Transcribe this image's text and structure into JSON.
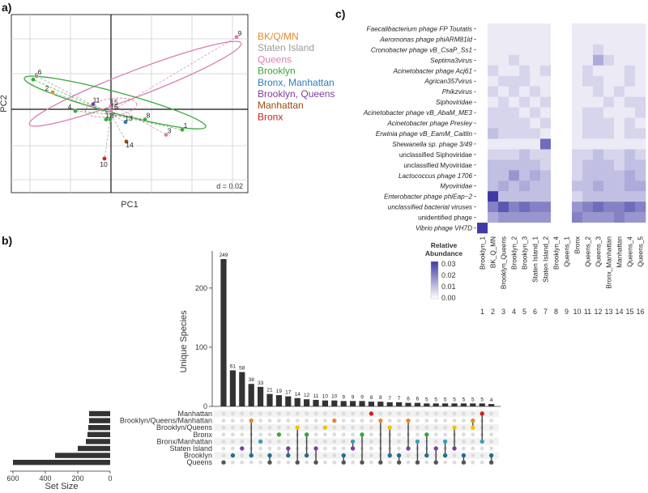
{
  "panels": {
    "a": "a)",
    "b": "b)",
    "c": "c)"
  },
  "colors": {
    "bk_q_mn": "#e8882a",
    "staten_island": "#9c9c9c",
    "queens": "#d77fb3",
    "brooklyn": "#3aa83a",
    "bronx_manhattan": "#2b7fba",
    "brooklyn_queens": "#7b3f9e",
    "manhattan": "#9a4a10",
    "bronx": "#d21f1f",
    "heat_high": "#3f3aa5",
    "bar": "#333333",
    "matrix_dot_off": "#dcdcdc"
  },
  "chart_data": [
    {
      "type": "scatter",
      "xlabel": "PC1",
      "ylabel": "PC2",
      "annotation": "d = 0.02",
      "grid": true,
      "legend_position": "right",
      "legend": [
        {
          "label": "BK/Q/MN",
          "color": "#e8882a"
        },
        {
          "label": "Staten Island",
          "color": "#9c9c9c"
        },
        {
          "label": "Queens",
          "color": "#d77fb3"
        },
        {
          "label": "Brooklyn",
          "color": "#3aa83a"
        },
        {
          "label": "Bronx, Manhattan",
          "color": "#2b7fba"
        },
        {
          "label": "Brooklyn, Queens",
          "color": "#7b3f9e"
        },
        {
          "label": "Manhattan",
          "color": "#9a4a10"
        },
        {
          "label": "Bronx",
          "color": "#d21f1f"
        }
      ],
      "points": [
        {
          "label": "1",
          "group": "Brooklyn",
          "x": 0.088,
          "y": -0.024
        },
        {
          "label": "2",
          "group": "BK/Q/MN",
          "x": -0.072,
          "y": 0.02
        },
        {
          "label": "3",
          "group": "Queens",
          "x": 0.068,
          "y": -0.03
        },
        {
          "label": "4",
          "group": "Brooklyn",
          "x": -0.044,
          "y": -0.002
        },
        {
          "label": "5",
          "group": "Brooklyn",
          "x": -0.096,
          "y": 0.035
        },
        {
          "label": "6",
          "group": "Staten Island",
          "x": -0.092,
          "y": 0.039
        },
        {
          "label": "7",
          "group": "Brooklyn",
          "x": -0.001,
          "y": -0.012
        },
        {
          "label": "8",
          "group": "Brooklyn",
          "x": 0.042,
          "y": -0.012
        },
        {
          "label": "9",
          "group": "Queens",
          "x": 0.155,
          "y": 0.085
        },
        {
          "label": "10",
          "group": "Bronx",
          "x": -0.008,
          "y": -0.058
        },
        {
          "label": "11",
          "group": "Brooklyn, Queens",
          "x": -0.022,
          "y": 0.006
        },
        {
          "label": "12",
          "group": "Brooklyn",
          "x": -0.006,
          "y": -0.012
        },
        {
          "label": "13",
          "group": "Bronx, Manhattan",
          "x": 0.018,
          "y": -0.015
        },
        {
          "label": "14",
          "group": "Manhattan",
          "x": 0.019,
          "y": -0.038
        },
        {
          "label": "15",
          "group": "Queens",
          "x": 0.0,
          "y": 0.004
        },
        {
          "label": "16",
          "group": "Queens",
          "x": 0.0,
          "y": -0.002
        }
      ]
    },
    {
      "type": "bar",
      "title": "",
      "ylabel": "Unique Species",
      "yticks": [
        0,
        100,
        200
      ],
      "ylim": [
        0,
        260
      ],
      "values": [
        249,
        61,
        58,
        38,
        33,
        21,
        19,
        17,
        14,
        12,
        11,
        10,
        10,
        9,
        9,
        9,
        8,
        8,
        7,
        7,
        6,
        6,
        5,
        5,
        5,
        5,
        5,
        5,
        5,
        4
      ],
      "sets": [
        "Manhattan",
        "Brooklyn/Queens/Manhattan",
        "Brooklyn/Queens",
        "Bronx",
        "Bronx/Manhattan",
        "Staten Island",
        "Brooklyn",
        "Queens"
      ],
      "set_size": {
        "xlabel": "Set Size",
        "xticks": [
          600,
          400,
          200,
          0
        ],
        "values": [
          130,
          130,
          135,
          140,
          150,
          200,
          340,
          600
        ]
      }
    },
    {
      "type": "heatmap",
      "legend_title": "Relative Abundance",
      "legend_ticks": [
        "0.03",
        "0.02",
        "0.01",
        "0.00"
      ],
      "rows": [
        "Faecalibacterium phage FP Toutatis",
        "Aeromonas phage phiARM81ld",
        "Cronobacter phage vB_CsaP_Ss1",
        "Septima3virus",
        "Acinetobacter phage Acj61",
        "Agrican357virus",
        "Phikzvirus",
        "Siphoviridae",
        "Acinetobacter phage vB_AbaM_ME3",
        "Acinetobacter phage Presley",
        "Erwinia phage vB_EamM_Caitlin",
        "Shewanella sp. phage 3/49",
        "unclassified Siphoviridae",
        "unclassified Myoviridae",
        "Lactococcus phage 1706",
        "Myoviridae",
        "Enterobacter phage phiEap−2",
        "unclassified bacterial viruses",
        "unidentified phage",
        "Vibrio phage VH7D"
      ],
      "row_italic": [
        true,
        true,
        true,
        true,
        true,
        true,
        true,
        true,
        true,
        true,
        true,
        true,
        false,
        false,
        true,
        true,
        true,
        true,
        false,
        true
      ],
      "columns": [
        "Brooklyn_1",
        "BK_Q_MN",
        "Brooklyn_Queens",
        "Brooklyn_2",
        "Brooklyn_3",
        "Staten Island_1",
        "Staten Island_2",
        "Brooklyn_4",
        "Queens_1",
        "Bronx",
        "Queens_2",
        "Queens_3",
        "Bronx_Manhattan",
        "Manhattan",
        "Queens_4",
        "Queens_5"
      ],
      "column_numbers": [
        "1",
        "2",
        "3",
        "4",
        "5",
        "6",
        "7",
        "8",
        "9",
        "10",
        "11",
        "12",
        "13",
        "14",
        "15",
        "16"
      ],
      "values": [
        [
          0.0,
          0.001,
          0.001,
          0.001,
          0.001,
          0.001,
          0.001,
          0.0,
          0.0,
          0.001,
          0.001,
          0.001,
          0.001,
          0.001,
          0.001,
          0.001
        ],
        [
          0.0,
          0.001,
          0.001,
          0.001,
          0.001,
          0.001,
          0.001,
          0.0,
          0.0,
          0.001,
          0.001,
          0.001,
          0.001,
          0.001,
          0.001,
          0.001
        ],
        [
          0.0,
          0.001,
          0.001,
          0.001,
          0.001,
          0.001,
          0.001,
          0.0,
          0.0,
          0.001,
          0.001,
          0.002,
          0.001,
          0.001,
          0.001,
          0.001
        ],
        [
          0.0,
          0.001,
          0.001,
          0.002,
          0.001,
          0.001,
          0.001,
          0.0,
          0.0,
          0.001,
          0.001,
          0.004,
          0.002,
          0.001,
          0.001,
          0.001
        ],
        [
          0.0,
          0.002,
          0.001,
          0.001,
          0.002,
          0.001,
          0.002,
          0.0,
          0.0,
          0.001,
          0.002,
          0.001,
          0.001,
          0.001,
          0.002,
          0.001
        ],
        [
          0.0,
          0.001,
          0.002,
          0.002,
          0.002,
          0.001,
          0.001,
          0.0,
          0.0,
          0.001,
          0.002,
          0.002,
          0.001,
          0.001,
          0.002,
          0.001
        ],
        [
          0.0,
          0.002,
          0.001,
          0.002,
          0.001,
          0.002,
          0.001,
          0.0,
          0.0,
          0.001,
          0.001,
          0.002,
          0.001,
          0.002,
          0.001,
          0.001
        ],
        [
          0.0,
          0.001,
          0.002,
          0.001,
          0.002,
          0.001,
          0.002,
          0.0,
          0.0,
          0.001,
          0.001,
          0.001,
          0.002,
          0.001,
          0.002,
          0.002
        ],
        [
          0.0,
          0.002,
          0.002,
          0.002,
          0.001,
          0.002,
          0.001,
          0.0,
          0.0,
          0.001,
          0.002,
          0.002,
          0.001,
          0.001,
          0.001,
          0.002
        ],
        [
          0.0,
          0.002,
          0.002,
          0.002,
          0.002,
          0.001,
          0.002,
          0.0,
          0.0,
          0.001,
          0.002,
          0.002,
          0.002,
          0.001,
          0.002,
          0.001
        ],
        [
          0.0,
          0.003,
          0.002,
          0.002,
          0.002,
          0.002,
          0.001,
          0.0,
          0.0,
          0.001,
          0.002,
          0.002,
          0.002,
          0.001,
          0.002,
          0.002
        ],
        [
          0.0,
          0.001,
          0.001,
          0.001,
          0.001,
          0.001,
          0.007,
          0.0,
          0.0,
          0.001,
          0.001,
          0.001,
          0.001,
          0.001,
          0.001,
          0.001
        ],
        [
          0.0,
          0.002,
          0.002,
          0.002,
          0.003,
          0.002,
          0.002,
          0.0,
          0.0,
          0.002,
          0.002,
          0.003,
          0.002,
          0.002,
          0.003,
          0.002
        ],
        [
          0.0,
          0.003,
          0.003,
          0.003,
          0.003,
          0.003,
          0.002,
          0.0,
          0.0,
          0.002,
          0.003,
          0.003,
          0.003,
          0.002,
          0.003,
          0.003
        ],
        [
          0.0,
          0.003,
          0.003,
          0.005,
          0.003,
          0.004,
          0.003,
          0.0,
          0.0,
          0.002,
          0.003,
          0.003,
          0.003,
          0.003,
          0.004,
          0.003
        ],
        [
          0.0,
          0.003,
          0.004,
          0.003,
          0.004,
          0.003,
          0.003,
          0.0,
          0.0,
          0.003,
          0.003,
          0.004,
          0.003,
          0.003,
          0.004,
          0.004
        ],
        [
          0.0,
          0.02,
          0.003,
          0.003,
          0.003,
          0.003,
          0.003,
          0.0,
          0.0,
          0.002,
          0.003,
          0.003,
          0.003,
          0.003,
          0.003,
          0.003
        ],
        [
          0.0,
          0.006,
          0.008,
          0.006,
          0.007,
          0.006,
          0.006,
          0.0,
          0.0,
          0.005,
          0.006,
          0.007,
          0.006,
          0.006,
          0.007,
          0.006
        ],
        [
          0.0,
          0.004,
          0.005,
          0.005,
          0.005,
          0.005,
          0.005,
          0.0,
          0.0,
          0.006,
          0.005,
          0.005,
          0.005,
          0.006,
          0.005,
          0.005
        ],
        [
          0.03,
          0.0,
          0.0,
          0.0,
          0.0,
          0.0,
          0.0,
          0.0,
          0.0,
          0.0,
          0.0,
          0.0,
          0.0,
          0.0,
          0.0,
          0.0
        ]
      ],
      "vmin": 0.0,
      "vmax": 0.03
    }
  ]
}
